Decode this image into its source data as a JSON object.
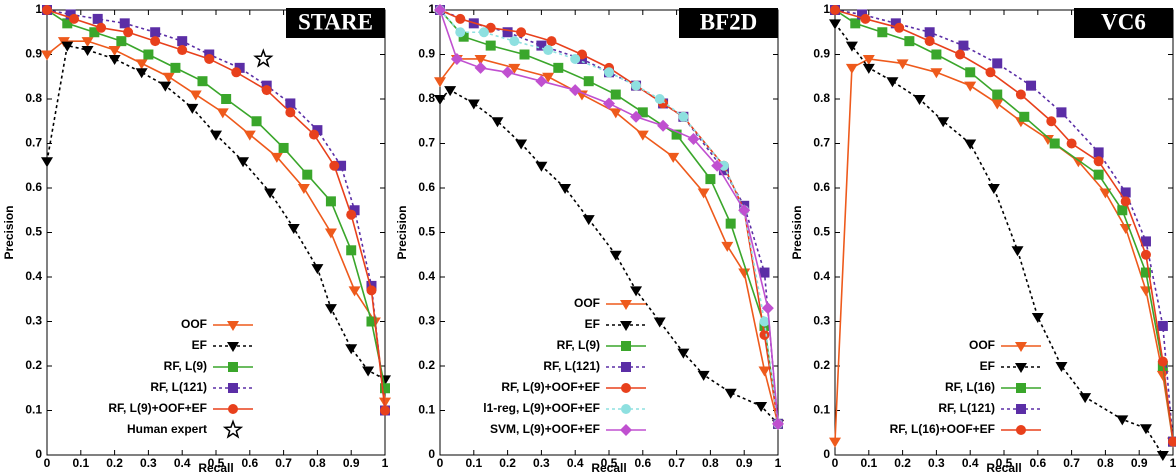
{
  "chart_data": [
    {
      "type": "line",
      "title": "STARE",
      "xlabel": "Recall",
      "ylabel": "Precision",
      "legend": "lower right",
      "xlim": [
        0,
        1
      ],
      "ylim": [
        0,
        1
      ],
      "xticks": [
        0,
        0.1,
        0.2,
        0.3,
        0.4,
        0.5,
        0.6,
        0.7,
        0.8,
        0.9,
        1
      ],
      "yticks": [
        0,
        0.1,
        0.2,
        0.3,
        0.4,
        0.5,
        0.6,
        0.7,
        0.8,
        0.9,
        1
      ],
      "series": [
        {
          "name": "OOF",
          "color": "#ee5a1c",
          "marker": "triangle-down",
          "dash": false,
          "x": [
            0,
            0.05,
            0.12,
            0.2,
            0.28,
            0.36,
            0.44,
            0.52,
            0.6,
            0.68,
            0.76,
            0.84,
            0.91,
            0.97,
            1
          ],
          "values": [
            0.9,
            0.93,
            0.93,
            0.91,
            0.88,
            0.85,
            0.81,
            0.77,
            0.72,
            0.67,
            0.6,
            0.5,
            0.37,
            0.3,
            0.12
          ]
        },
        {
          "name": "EF",
          "color": "#000000",
          "marker": "triangle-down",
          "dash": true,
          "x": [
            0,
            0.06,
            0.12,
            0.2,
            0.28,
            0.35,
            0.43,
            0.5,
            0.58,
            0.66,
            0.73,
            0.8,
            0.84,
            0.9,
            0.95,
            1
          ],
          "values": [
            0.66,
            0.92,
            0.91,
            0.89,
            0.86,
            0.83,
            0.78,
            0.72,
            0.66,
            0.59,
            0.51,
            0.42,
            0.33,
            0.24,
            0.19,
            0.17
          ]
        },
        {
          "name": "RF, L(9)",
          "color": "#3aa62b",
          "marker": "square",
          "dash": false,
          "x": [
            0,
            0.06,
            0.14,
            0.22,
            0.3,
            0.38,
            0.46,
            0.53,
            0.62,
            0.7,
            0.77,
            0.84,
            0.9,
            0.96,
            1
          ],
          "values": [
            1,
            0.97,
            0.95,
            0.93,
            0.9,
            0.87,
            0.84,
            0.8,
            0.75,
            0.69,
            0.63,
            0.57,
            0.46,
            0.3,
            0.15
          ]
        },
        {
          "name": "RF, L(121)",
          "color": "#5b2ea6",
          "marker": "square",
          "dash": true,
          "x": [
            0,
            0.07,
            0.15,
            0.23,
            0.32,
            0.4,
            0.48,
            0.57,
            0.65,
            0.72,
            0.8,
            0.87,
            0.91,
            0.96,
            1
          ],
          "values": [
            1,
            0.99,
            0.98,
            0.97,
            0.95,
            0.93,
            0.9,
            0.87,
            0.83,
            0.79,
            0.73,
            0.65,
            0.55,
            0.38,
            0.1
          ]
        },
        {
          "name": "RF, L(9)+OOF+EF",
          "color": "#e8401c",
          "marker": "circle",
          "dash": false,
          "x": [
            0,
            0.08,
            0.16,
            0.24,
            0.32,
            0.4,
            0.48,
            0.56,
            0.65,
            0.72,
            0.79,
            0.85,
            0.9,
            0.96,
            1
          ],
          "values": [
            1,
            0.98,
            0.96,
            0.95,
            0.93,
            0.91,
            0.89,
            0.86,
            0.82,
            0.77,
            0.72,
            0.65,
            0.54,
            0.37,
            0.1
          ]
        },
        {
          "name": "Human expert",
          "color": "#000000",
          "marker": "star",
          "dash": false,
          "x": [
            0.64
          ],
          "values": [
            0.89
          ]
        }
      ]
    },
    {
      "type": "line",
      "title": "BF2D",
      "xlabel": "Recall",
      "ylabel": "Precision",
      "legend": "lower right",
      "xlim": [
        0,
        1
      ],
      "ylim": [
        0,
        1
      ],
      "xticks": [
        0,
        0.1,
        0.2,
        0.3,
        0.4,
        0.5,
        0.6,
        0.7,
        0.8,
        0.9,
        1
      ],
      "yticks": [
        0,
        0.1,
        0.2,
        0.3,
        0.4,
        0.5,
        0.6,
        0.7,
        0.8,
        0.9,
        1
      ],
      "series": [
        {
          "name": "OOF",
          "color": "#ee5a1c",
          "marker": "triangle-down",
          "dash": false,
          "x": [
            0,
            0.05,
            0.12,
            0.22,
            0.32,
            0.42,
            0.52,
            0.6,
            0.69,
            0.78,
            0.85,
            0.9,
            0.96,
            1
          ],
          "values": [
            0.84,
            0.89,
            0.89,
            0.87,
            0.85,
            0.81,
            0.77,
            0.72,
            0.67,
            0.59,
            0.47,
            0.41,
            0.19,
            0.07
          ]
        },
        {
          "name": "EF",
          "color": "#000000",
          "marker": "triangle-down",
          "dash": true,
          "x": [
            0,
            0.03,
            0.1,
            0.17,
            0.24,
            0.3,
            0.37,
            0.44,
            0.52,
            0.58,
            0.65,
            0.72,
            0.78,
            0.86,
            0.95,
            1
          ],
          "values": [
            0.8,
            0.82,
            0.79,
            0.75,
            0.7,
            0.65,
            0.6,
            0.53,
            0.45,
            0.37,
            0.3,
            0.23,
            0.18,
            0.14,
            0.11,
            0.07
          ]
        },
        {
          "name": "RF, L(9)",
          "color": "#3aa62b",
          "marker": "square",
          "dash": false,
          "x": [
            0,
            0.07,
            0.15,
            0.25,
            0.35,
            0.44,
            0.52,
            0.6,
            0.7,
            0.8,
            0.86,
            0.96,
            1
          ],
          "values": [
            1,
            0.94,
            0.92,
            0.9,
            0.87,
            0.84,
            0.81,
            0.77,
            0.72,
            0.62,
            0.52,
            0.29,
            0.07
          ]
        },
        {
          "name": "RF, L(121)",
          "color": "#5b2ea6",
          "marker": "square",
          "dash": true,
          "x": [
            0,
            0.1,
            0.2,
            0.3,
            0.42,
            0.5,
            0.58,
            0.66,
            0.72,
            0.84,
            0.9,
            0.96,
            1
          ],
          "values": [
            1,
            0.97,
            0.95,
            0.92,
            0.89,
            0.86,
            0.83,
            0.79,
            0.76,
            0.64,
            0.56,
            0.41,
            0.07
          ]
        },
        {
          "name": "RF, L(9)+OOF+EF",
          "color": "#e8401c",
          "marker": "circle",
          "dash": false,
          "x": [
            0,
            0.06,
            0.15,
            0.24,
            0.33,
            0.42,
            0.5,
            0.58,
            0.66,
            0.72,
            0.84,
            0.9,
            0.96,
            1
          ],
          "values": [
            1,
            0.98,
            0.96,
            0.95,
            0.93,
            0.9,
            0.87,
            0.83,
            0.79,
            0.76,
            0.65,
            0.55,
            0.27,
            0.07
          ]
        },
        {
          "name": "l1-reg, L(9)+OOF+EF",
          "color": "#8ee0e0",
          "marker": "circle",
          "dash": true,
          "x": [
            0,
            0.06,
            0.13,
            0.22,
            0.32,
            0.4,
            0.5,
            0.58,
            0.65,
            0.72,
            0.84,
            0.9,
            0.96,
            1
          ],
          "values": [
            1,
            0.95,
            0.95,
            0.93,
            0.91,
            0.89,
            0.86,
            0.83,
            0.8,
            0.76,
            0.65,
            0.55,
            0.3,
            0.07
          ]
        },
        {
          "name": "SVM, L(9)+OOF+EF",
          "color": "#c050d0",
          "marker": "diamond",
          "dash": false,
          "x": [
            0,
            0.05,
            0.12,
            0.2,
            0.3,
            0.4,
            0.5,
            0.58,
            0.66,
            0.75,
            0.82,
            0.9,
            0.97,
            1
          ],
          "values": [
            1,
            0.89,
            0.87,
            0.86,
            0.84,
            0.82,
            0.79,
            0.76,
            0.74,
            0.71,
            0.65,
            0.55,
            0.33,
            0.07
          ]
        }
      ]
    },
    {
      "type": "line",
      "title": "VC6",
      "xlabel": "Recall",
      "ylabel": "Precision",
      "legend": "lower right",
      "xlim": [
        0,
        1
      ],
      "ylim": [
        0,
        1
      ],
      "xticks": [
        0,
        0.1,
        0.2,
        0.3,
        0.4,
        0.5,
        0.6,
        0.7,
        0.8,
        0.9,
        1
      ],
      "yticks": [
        0,
        0.1,
        0.2,
        0.3,
        0.4,
        0.5,
        0.6,
        0.7,
        0.8,
        0.9,
        1
      ],
      "series": [
        {
          "name": "OOF",
          "color": "#ee5a1c",
          "marker": "triangle-down",
          "dash": false,
          "x": [
            0,
            0.05,
            0.1,
            0.2,
            0.3,
            0.4,
            0.48,
            0.55,
            0.63,
            0.72,
            0.8,
            0.86,
            0.92,
            0.97,
            1
          ],
          "values": [
            0.03,
            0.87,
            0.89,
            0.88,
            0.86,
            0.83,
            0.79,
            0.75,
            0.71,
            0.66,
            0.59,
            0.51,
            0.37,
            0.18,
            0.03
          ]
        },
        {
          "name": "EF",
          "color": "#000000",
          "marker": "triangle-down",
          "dash": true,
          "x": [
            0,
            0.05,
            0.1,
            0.17,
            0.25,
            0.32,
            0.4,
            0.47,
            0.54,
            0.6,
            0.67,
            0.74,
            0.85,
            0.92,
            0.97
          ],
          "values": [
            0.97,
            0.92,
            0.87,
            0.84,
            0.8,
            0.75,
            0.7,
            0.6,
            0.46,
            0.31,
            0.2,
            0.13,
            0.08,
            0.06,
            0
          ]
        },
        {
          "name": "RF, L(16)",
          "color": "#3aa62b",
          "marker": "square",
          "dash": false,
          "x": [
            0,
            0.06,
            0.14,
            0.22,
            0.3,
            0.4,
            0.48,
            0.56,
            0.65,
            0.78,
            0.85,
            0.92,
            0.97,
            1
          ],
          "values": [
            1,
            0.97,
            0.95,
            0.93,
            0.9,
            0.86,
            0.81,
            0.76,
            0.7,
            0.63,
            0.55,
            0.41,
            0.2,
            0.03
          ]
        },
        {
          "name": "RF, L(121)",
          "color": "#5b2ea6",
          "marker": "square",
          "dash": true,
          "x": [
            0,
            0.08,
            0.18,
            0.28,
            0.38,
            0.48,
            0.58,
            0.67,
            0.78,
            0.86,
            0.92,
            0.97,
            1
          ],
          "values": [
            1,
            0.99,
            0.97,
            0.95,
            0.92,
            0.88,
            0.83,
            0.77,
            0.68,
            0.59,
            0.48,
            0.29,
            0.03
          ]
        },
        {
          "name": "RF, L(16)+OOF+EF",
          "color": "#e8401c",
          "marker": "circle",
          "dash": false,
          "x": [
            0,
            0.09,
            0.19,
            0.28,
            0.37,
            0.46,
            0.55,
            0.64,
            0.7,
            0.78,
            0.86,
            0.92,
            0.97,
            1
          ],
          "values": [
            1,
            0.98,
            0.96,
            0.93,
            0.9,
            0.86,
            0.81,
            0.75,
            0.7,
            0.66,
            0.57,
            0.45,
            0.21,
            0.03
          ]
        }
      ]
    }
  ]
}
